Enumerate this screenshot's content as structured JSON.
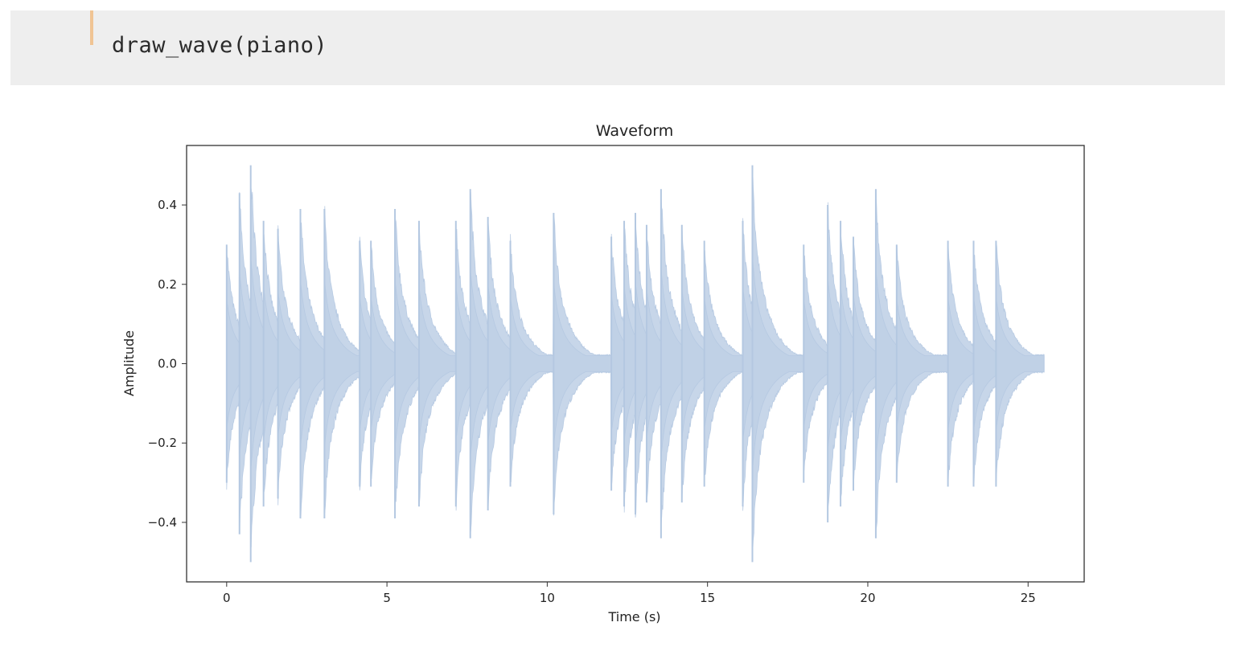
{
  "code_cell": {
    "source": "draw_wave(piano)"
  },
  "chart_data": {
    "type": "area",
    "title": "Waveform",
    "xlabel": "Time (s)",
    "ylabel": "Amplitude",
    "xlim": [
      -1.25,
      26.75
    ],
    "ylim": [
      -0.55,
      0.55
    ],
    "xticks": [
      0,
      5,
      10,
      15,
      20,
      25
    ],
    "xtick_labels": [
      "0",
      "5",
      "10",
      "15",
      "20",
      "25"
    ],
    "yticks": [
      0.4,
      0.2,
      0.0,
      -0.2,
      -0.4
    ],
    "ytick_labels": [
      "0.4",
      "0.2",
      "0.0",
      "−0.2",
      "−0.4"
    ],
    "grid": false,
    "color": "#b4c8e1",
    "series": [
      {
        "duration": 25.5,
        "onsets": [
          {
            "t": 0.0,
            "peak": 0.3
          },
          {
            "t": 0.4,
            "peak": 0.43
          },
          {
            "t": 0.75,
            "peak": 0.5
          },
          {
            "t": 1.15,
            "peak": 0.36
          },
          {
            "t": 1.6,
            "peak": 0.34
          },
          {
            "t": 2.3,
            "peak": 0.39
          },
          {
            "t": 3.05,
            "peak": 0.39
          },
          {
            "t": 4.15,
            "peak": 0.31
          },
          {
            "t": 4.5,
            "peak": 0.31
          },
          {
            "t": 5.25,
            "peak": 0.39
          },
          {
            "t": 6.0,
            "peak": 0.36
          },
          {
            "t": 7.15,
            "peak": 0.36
          },
          {
            "t": 7.6,
            "peak": 0.44
          },
          {
            "t": 8.15,
            "peak": 0.37
          },
          {
            "t": 8.85,
            "peak": 0.31
          },
          {
            "t": 10.2,
            "peak": 0.38
          },
          {
            "t": 12.0,
            "peak": 0.32
          },
          {
            "t": 12.4,
            "peak": 0.36
          },
          {
            "t": 12.75,
            "peak": 0.38
          },
          {
            "t": 13.1,
            "peak": 0.35
          },
          {
            "t": 13.55,
            "peak": 0.44
          },
          {
            "t": 14.2,
            "peak": 0.35
          },
          {
            "t": 14.9,
            "peak": 0.31
          },
          {
            "t": 16.1,
            "peak": 0.36
          },
          {
            "t": 16.4,
            "peak": 0.5
          },
          {
            "t": 18.0,
            "peak": 0.3
          },
          {
            "t": 18.75,
            "peak": 0.4
          },
          {
            "t": 19.15,
            "peak": 0.36
          },
          {
            "t": 19.55,
            "peak": 0.32
          },
          {
            "t": 20.25,
            "peak": 0.44
          },
          {
            "t": 20.9,
            "peak": 0.3
          },
          {
            "t": 22.5,
            "peak": 0.31
          },
          {
            "t": 23.3,
            "peak": 0.31
          },
          {
            "t": 24.0,
            "peak": 0.31
          }
        ]
      }
    ]
  }
}
